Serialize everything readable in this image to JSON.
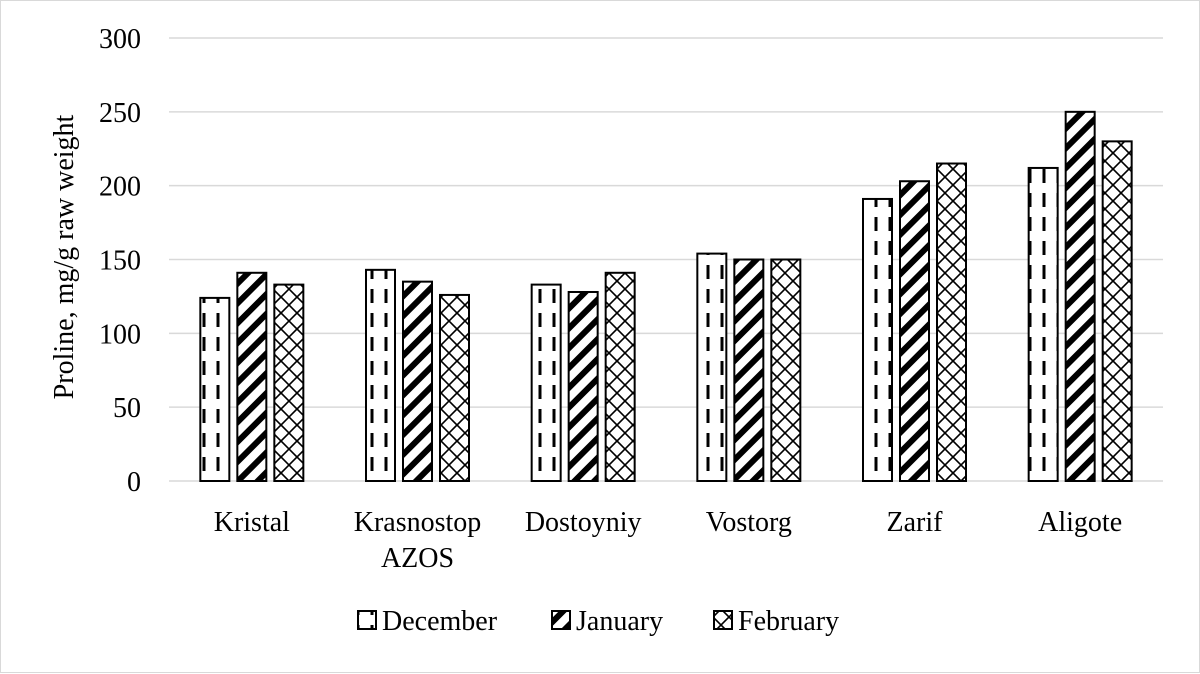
{
  "chart_data": {
    "type": "bar",
    "title": "",
    "xlabel": "",
    "ylabel": "Proline, mg/g raw weight",
    "ylim": [
      0,
      300
    ],
    "yticks": [
      0,
      50,
      100,
      150,
      200,
      250,
      300
    ],
    "grid": true,
    "legend_position": "bottom",
    "categories": [
      [
        "Kristal"
      ],
      [
        "Krasnostop",
        "AZOS"
      ],
      [
        "Dostoyniy"
      ],
      [
        "Vostorg"
      ],
      [
        "Zarif"
      ],
      [
        "Aligote"
      ]
    ],
    "series": [
      {
        "name": "December",
        "pattern": "dashed-vertical",
        "values": [
          124,
          143,
          133,
          154,
          191,
          212
        ]
      },
      {
        "name": "January",
        "pattern": "diagonal-stripes",
        "values": [
          141,
          135,
          128,
          150,
          203,
          250
        ]
      },
      {
        "name": "February",
        "pattern": "zigzag",
        "values": [
          133,
          126,
          141,
          150,
          215,
          230
        ]
      }
    ],
    "colors": {
      "grid": "#d9d9d9",
      "bar_stroke": "#000000",
      "frame": "#d9d9d9"
    }
  }
}
